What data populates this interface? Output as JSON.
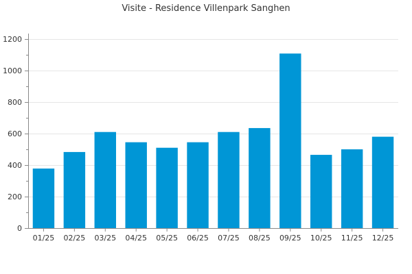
{
  "chart_data": {
    "type": "bar",
    "title": "Visite - Residence Villenpark Sanghen",
    "xlabel": "",
    "ylabel": "",
    "categories": [
      "01/25",
      "02/25",
      "03/25",
      "04/25",
      "05/25",
      "06/25",
      "07/25",
      "08/25",
      "09/25",
      "10/25",
      "11/25",
      "12/25"
    ],
    "values": [
      378,
      483,
      610,
      545,
      510,
      545,
      610,
      635,
      1108,
      465,
      500,
      580
    ],
    "ylim": [
      0,
      1200
    ],
    "yticks": [
      0,
      200,
      400,
      600,
      800,
      1000,
      1200
    ],
    "grid": true,
    "legend": "none",
    "colors": {
      "bar": "#0096d6",
      "grid": "#e6e6e6",
      "axis": "#888888"
    }
  }
}
